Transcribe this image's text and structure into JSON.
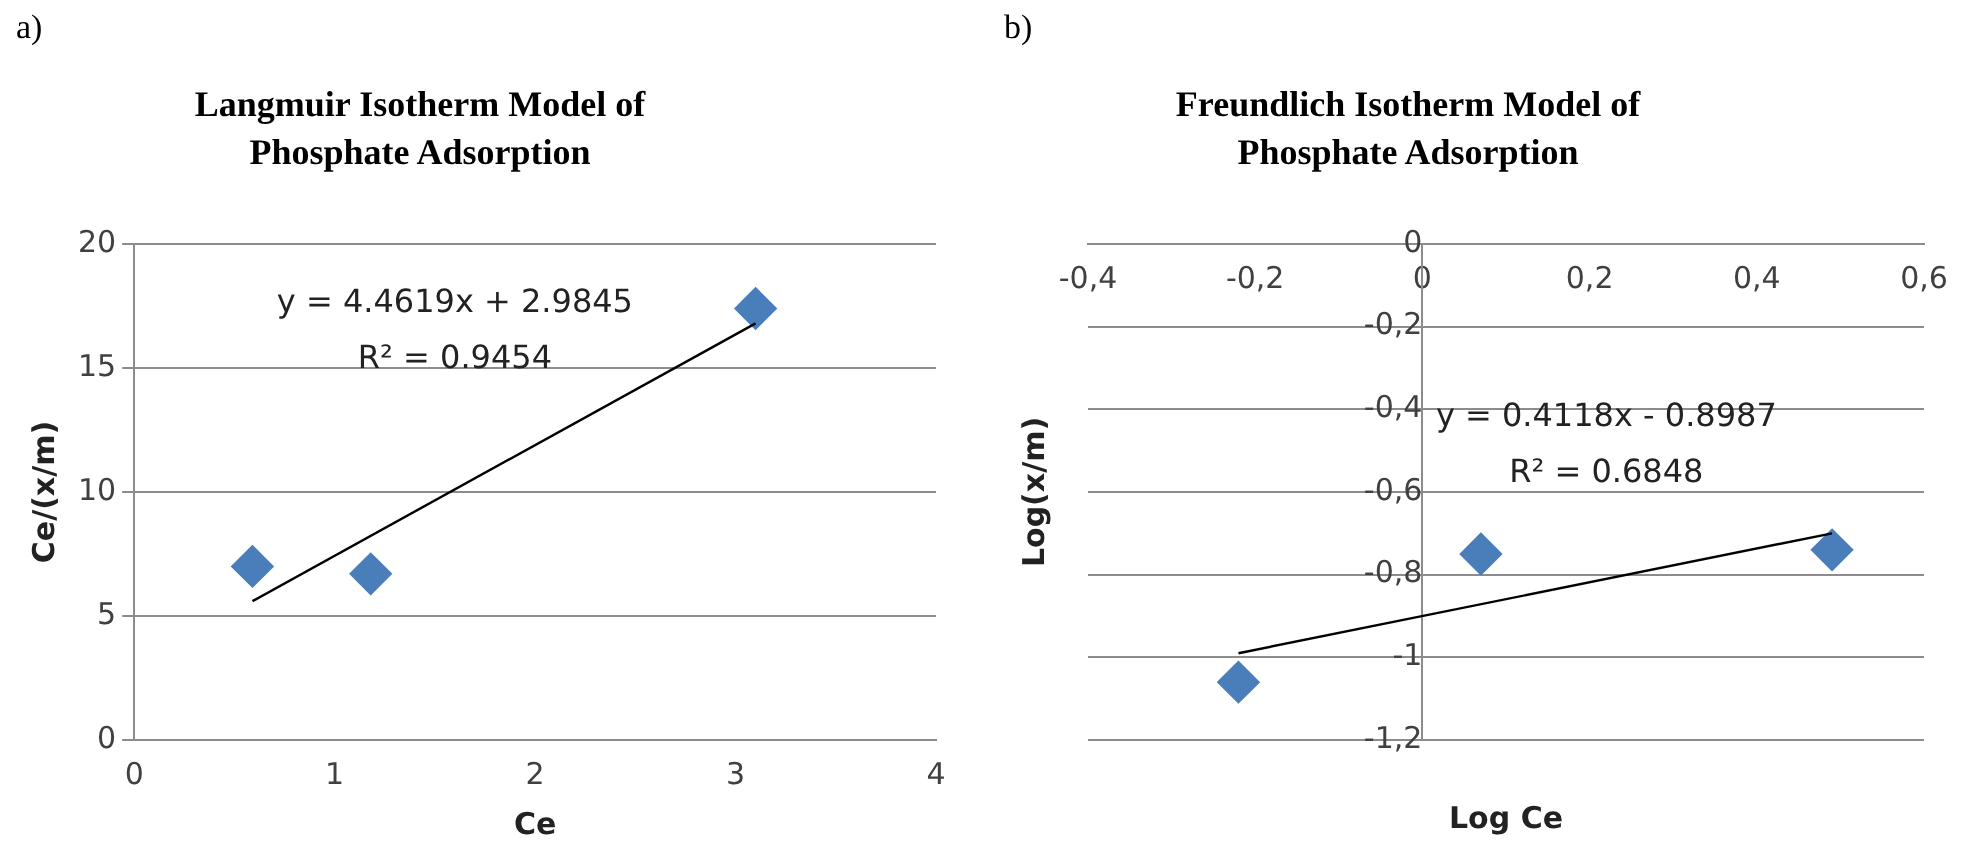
{
  "chart_data": [
    {
      "type": "scatter",
      "title": "Langmuir Isotherm Model of Phosphate Adsorption",
      "xlabel": "Ce",
      "ylabel": "Ce/(x/m)",
      "annotations": [
        "a)",
        "y = 4.4619x + 2.9845",
        "R² = 0.9454"
      ],
      "series": [
        {
          "type": "scatter",
          "color": "#4a7ebb",
          "marker": "diamond",
          "x": [
            0.59,
            1.18,
            3.1
          ],
          "values": [
            7.0,
            6.7,
            17.4
          ]
        },
        {
          "type": "line",
          "color": "#000000",
          "marker": "none",
          "x": [
            0.59,
            3.1
          ],
          "values": [
            5.6,
            16.8
          ]
        }
      ],
      "xlim": [
        0,
        4
      ],
      "xticks": [
        0,
        1,
        2,
        3,
        4
      ],
      "ylim": [
        0,
        20
      ],
      "yticks": [
        0,
        5,
        10,
        15,
        20
      ],
      "grid": "y",
      "legend": false
    },
    {
      "type": "scatter",
      "title": "Freundlich Isotherm Model of Phosphate Adsorption",
      "xlabel": "Log Ce",
      "ylabel": "Log(x/m)",
      "annotations": [
        "b)",
        "y = 0.4118x - 0.8987",
        "R² = 0.6848"
      ],
      "series": [
        {
          "type": "scatter",
          "color": "#4a7ebb",
          "marker": "diamond",
          "x": [
            -0.22,
            0.07,
            0.49
          ],
          "values": [
            -1.06,
            -0.75,
            -0.74
          ]
        },
        {
          "type": "line",
          "color": "#000000",
          "marker": "none",
          "x": [
            -0.22,
            0.49
          ],
          "values": [
            -0.99,
            -0.7
          ]
        }
      ],
      "xlim": [
        -0.4,
        0.6
      ],
      "xticks": [
        {
          "value": -0.4,
          "label": "-0,4"
        },
        {
          "value": -0.2,
          "label": "-0,2"
        },
        0,
        {
          "value": 0.2,
          "label": "0,2"
        },
        {
          "value": 0.4,
          "label": "0,4"
        },
        {
          "value": 0.6,
          "label": "0,6"
        }
      ],
      "ylim": [
        -1.2,
        0
      ],
      "yticks": [
        {
          "value": -1.2,
          "label": "-1,2"
        },
        -1,
        {
          "value": -0.8,
          "label": "-0,8"
        },
        {
          "value": -0.6,
          "label": "-0,6"
        },
        {
          "value": -0.4,
          "label": "-0,4"
        },
        {
          "value": -0.2,
          "label": "-0,2"
        },
        0
      ],
      "grid": "y",
      "legend": false
    }
  ]
}
